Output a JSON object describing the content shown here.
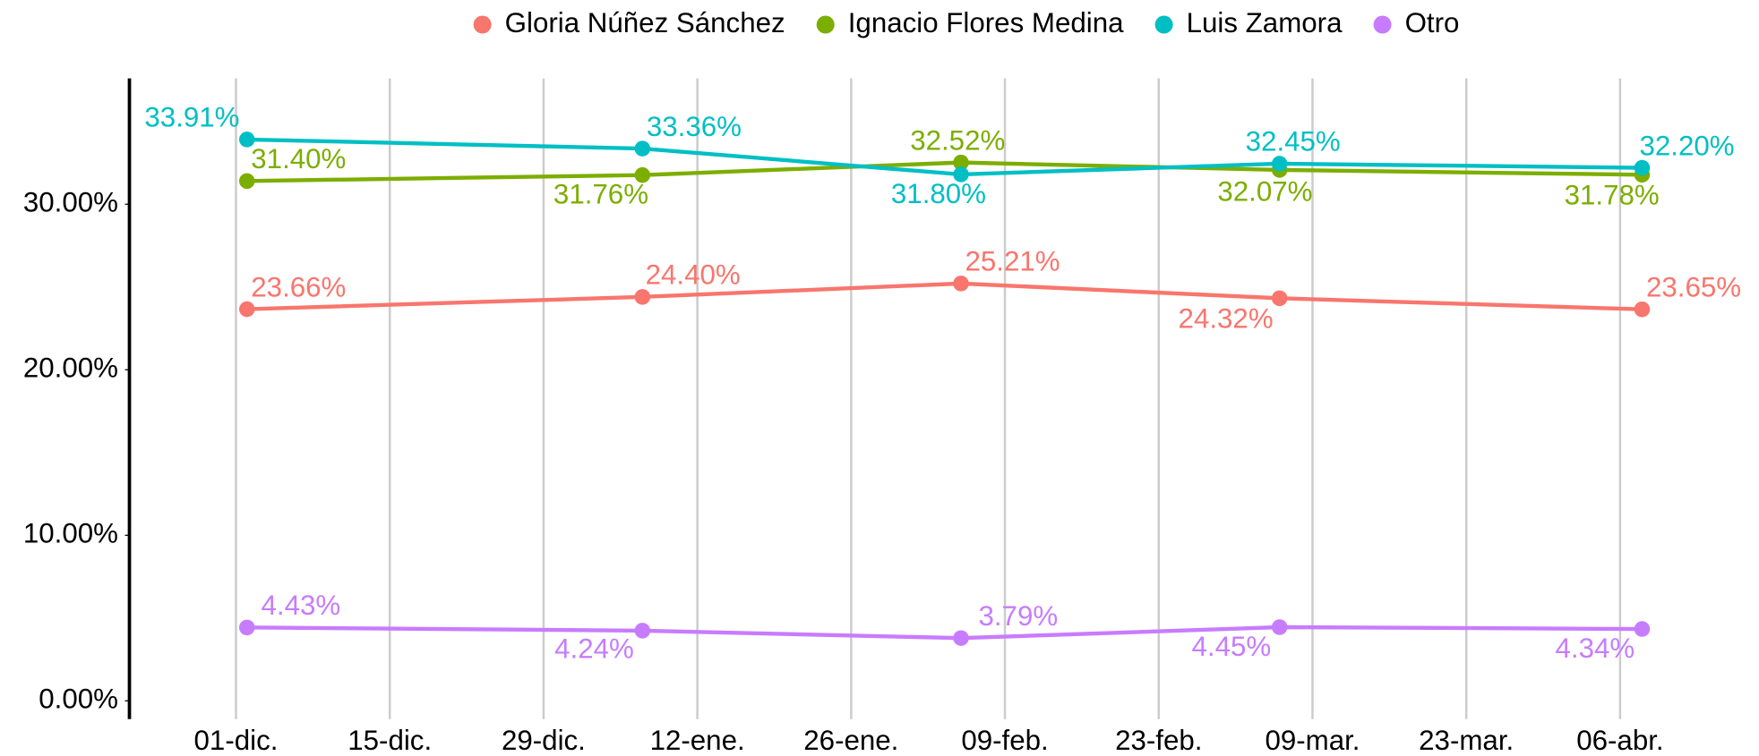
{
  "chart_data": {
    "type": "line",
    "legend": "top",
    "grid": "vertical",
    "x": [
      1,
      37,
      66,
      95,
      128
    ],
    "xlim": [
      -9.7,
      138.6
    ],
    "xticks": [
      {
        "value": 0,
        "label": "01-dic."
      },
      {
        "value": 14,
        "label": "15-dic."
      },
      {
        "value": 28,
        "label": "29-dic."
      },
      {
        "value": 42,
        "label": "12-ene."
      },
      {
        "value": 56,
        "label": "26-ene."
      },
      {
        "value": 70,
        "label": "09-feb."
      },
      {
        "value": 84,
        "label": "23-feb."
      },
      {
        "value": 98,
        "label": "09-mar."
      },
      {
        "value": 112,
        "label": "23-mar."
      },
      {
        "value": 126,
        "label": "06-abr."
      }
    ],
    "ylim": [
      -1.1,
      37.6
    ],
    "yticks": [
      {
        "value": 0,
        "label": "0.00%"
      },
      {
        "value": 10,
        "label": "10.00%"
      },
      {
        "value": 20,
        "label": "20.00%"
      },
      {
        "value": 30,
        "label": "30.00%"
      }
    ],
    "series": [
      {
        "name": "Gloria Núñez Sánchez",
        "color": "#F8766D",
        "values": [
          23.66,
          24.4,
          25.21,
          24.32,
          23.65
        ],
        "value_labels": [
          "23.66%",
          "24.40%",
          "25.21%",
          "24.32%",
          "23.65%"
        ]
      },
      {
        "name": "Ignacio Flores Medina",
        "color": "#7CAE00",
        "values": [
          31.4,
          31.76,
          32.52,
          32.07,
          31.78
        ],
        "value_labels": [
          "31.40%",
          "31.76%",
          "32.52%",
          "32.07%",
          "31.78%"
        ]
      },
      {
        "name": "Luis Zamora",
        "color": "#00BFC4",
        "values": [
          33.91,
          33.36,
          31.8,
          32.45,
          32.2
        ],
        "value_labels": [
          "33.91%",
          "33.36%",
          "31.80%",
          "32.45%",
          "32.20%"
        ]
      },
      {
        "name": "Otro",
        "color": "#C77CFF",
        "values": [
          4.43,
          4.24,
          3.79,
          4.45,
          4.34
        ],
        "value_labels": [
          "4.43%",
          "4.24%",
          "3.79%",
          "4.45%",
          "4.34%"
        ]
      }
    ]
  }
}
